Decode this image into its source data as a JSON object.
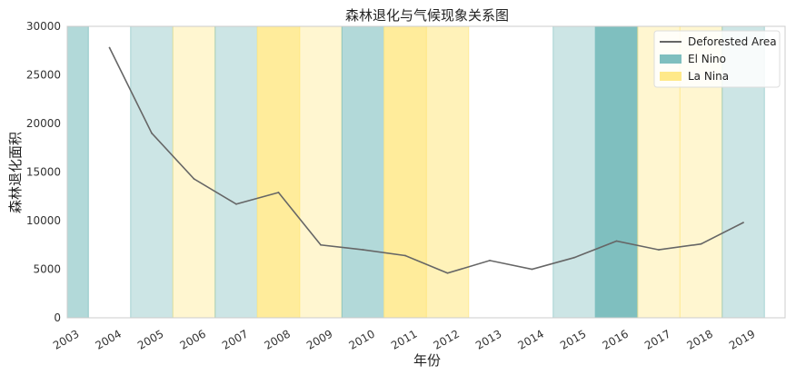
{
  "chart_data": {
    "type": "line",
    "title": "森林退化与气候现象关系图",
    "xlabel": "年份",
    "ylabel": "森林退化面积",
    "categories": [
      "2003",
      "2004",
      "2005",
      "2006",
      "2007",
      "2008",
      "2009",
      "2010",
      "2011",
      "2012",
      "2013",
      "2014",
      "2015",
      "2016",
      "2017",
      "2018",
      "2019"
    ],
    "series": [
      {
        "name": "Deforested Area",
        "color": "#666666",
        "values": [
          null,
          27800,
          19000,
          14300,
          11700,
          12900,
          7500,
          7000,
          6400,
          4600,
          5900,
          5000,
          6200,
          7900,
          7000,
          7600,
          9800
        ]
      }
    ],
    "ylim": [
      0,
      30000
    ],
    "yticks": [
      0,
      5000,
      10000,
      15000,
      20000,
      25000,
      30000
    ],
    "grid": false,
    "legend_position": "top-right",
    "legend": [
      {
        "label": "Deforested Area",
        "kind": "line",
        "color": "#666666"
      },
      {
        "label": "El Nino",
        "kind": "patch",
        "color": "#7fbfbf"
      },
      {
        "label": "La Nina",
        "kind": "patch",
        "color": "#ffe98a"
      }
    ],
    "climate_bands": [
      {
        "year": "2003",
        "phenomenon": "El Nino",
        "intensity": 0.6
      },
      {
        "year": "2005",
        "phenomenon": "El Nino",
        "intensity": 0.4
      },
      {
        "year": "2006",
        "phenomenon": "La Nina",
        "intensity": 0.4
      },
      {
        "year": "2007",
        "phenomenon": "El Nino",
        "intensity": 0.4
      },
      {
        "year": "2008",
        "phenomenon": "La Nina",
        "intensity": 0.85
      },
      {
        "year": "2009",
        "phenomenon": "La Nina",
        "intensity": 0.4
      },
      {
        "year": "2010",
        "phenomenon": "El Nino",
        "intensity": 0.6
      },
      {
        "year": "2011",
        "phenomenon": "La Nina",
        "intensity": 0.85
      },
      {
        "year": "2012",
        "phenomenon": "La Nina",
        "intensity": 0.6
      },
      {
        "year": "2015",
        "phenomenon": "El Nino",
        "intensity": 0.4
      },
      {
        "year": "2016",
        "phenomenon": "El Nino",
        "intensity": 1.0
      },
      {
        "year": "2017",
        "phenomenon": "La Nina",
        "intensity": 0.4
      },
      {
        "year": "2018",
        "phenomenon": "La Nina",
        "intensity": 0.4
      },
      {
        "year": "2019",
        "phenomenon": "El Nino",
        "intensity": 0.4
      }
    ]
  }
}
